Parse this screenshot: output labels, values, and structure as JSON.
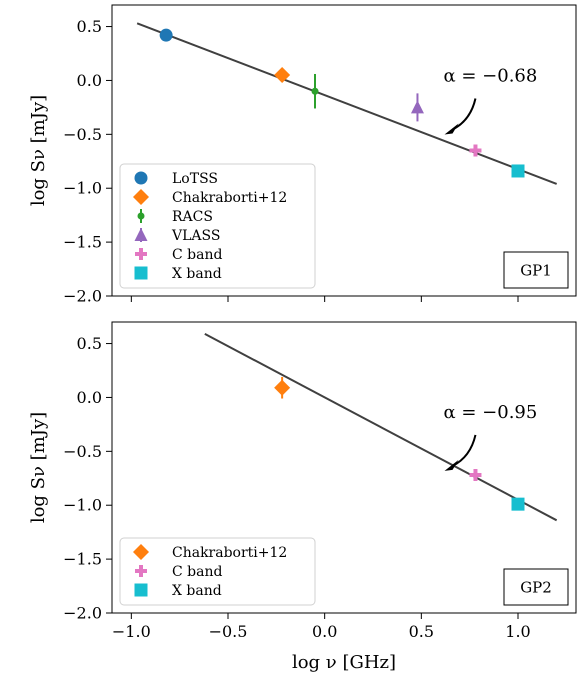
{
  "chart_data": [
    {
      "type": "scatter",
      "panel_label": "GP1",
      "xlim": [
        -1.1,
        1.3
      ],
      "ylim": [
        -2.0,
        0.7
      ],
      "xticks": [
        -1.0,
        -0.5,
        0.0,
        0.5,
        1.0
      ],
      "xtick_labels": [
        "",
        "",
        "",
        "",
        ""
      ],
      "yticks": [
        0.5,
        0.0,
        -0.5,
        -1.0,
        -1.5,
        -2.0
      ],
      "ytick_labels": [
        "0.5",
        "0.0",
        "−0.5",
        "−1.0",
        "−1.5",
        "−2.0"
      ],
      "ylabel": "log Sν [mJy]",
      "xlabel": "",
      "fit": {
        "alpha_label": "α = −0.68",
        "x": [
          -0.97,
          1.2
        ],
        "y": [
          0.53,
          -0.96
        ]
      },
      "series": [
        {
          "name": "LoTSS",
          "marker": "circle",
          "color": "#1f77b4",
          "x": [
            -0.82
          ],
          "y": [
            0.42
          ],
          "yerr": [
            0.02
          ]
        },
        {
          "name": "Chakraborti+12",
          "marker": "diamond",
          "color": "#ff7f0e",
          "x": [
            -0.22
          ],
          "y": [
            0.05
          ],
          "yerr": [
            0.03
          ]
        },
        {
          "name": "RACS",
          "marker": "smallcircle",
          "color": "#2ca02c",
          "x": [
            -0.05
          ],
          "y": [
            -0.1
          ],
          "yerr": [
            0.16
          ]
        },
        {
          "name": "VLASS",
          "marker": "triangle",
          "color": "#9467bd",
          "x": [
            0.48
          ],
          "y": [
            -0.25
          ],
          "yerr": [
            0.13
          ]
        },
        {
          "name": "C band",
          "marker": "plus",
          "color": "#e377c2",
          "x": [
            0.78
          ],
          "y": [
            -0.65
          ],
          "yerr": [
            0.0
          ]
        },
        {
          "name": "X band",
          "marker": "square",
          "color": "#17becf",
          "x": [
            1.0
          ],
          "y": [
            -0.84
          ],
          "yerr": [
            0.0
          ]
        }
      ],
      "legend_position": "lower-left"
    },
    {
      "type": "scatter",
      "panel_label": "GP2",
      "xlim": [
        -1.1,
        1.3
      ],
      "ylim": [
        -2.0,
        0.7
      ],
      "xticks": [
        -1.0,
        -0.5,
        0.0,
        0.5,
        1.0
      ],
      "xtick_labels": [
        "−1.0",
        "−0.5",
        "0.0",
        "0.5",
        "1.0"
      ],
      "yticks": [
        0.5,
        0.0,
        -0.5,
        -1.0,
        -1.5,
        -2.0
      ],
      "ytick_labels": [
        "0.5",
        "0.0",
        "−0.5",
        "−1.0",
        "−1.5",
        "−2.0"
      ],
      "ylabel": "log Sν [mJy]",
      "xlabel": "log ν [GHz]",
      "fit": {
        "alpha_label": "α = −0.95",
        "x": [
          -0.62,
          1.2
        ],
        "y": [
          0.59,
          -1.14
        ]
      },
      "series": [
        {
          "name": "Chakraborti+12",
          "marker": "diamond",
          "color": "#ff7f0e",
          "x": [
            -0.22
          ],
          "y": [
            0.09
          ],
          "yerr": [
            0.1
          ]
        },
        {
          "name": "C band",
          "marker": "plus",
          "color": "#e377c2",
          "x": [
            0.78
          ],
          "y": [
            -0.72
          ],
          "yerr": [
            0.0
          ]
        },
        {
          "name": "X band",
          "marker": "square",
          "color": "#17becf",
          "x": [
            1.0
          ],
          "y": [
            -0.99
          ],
          "yerr": [
            0.0
          ]
        }
      ],
      "legend_position": "lower-left"
    }
  ]
}
